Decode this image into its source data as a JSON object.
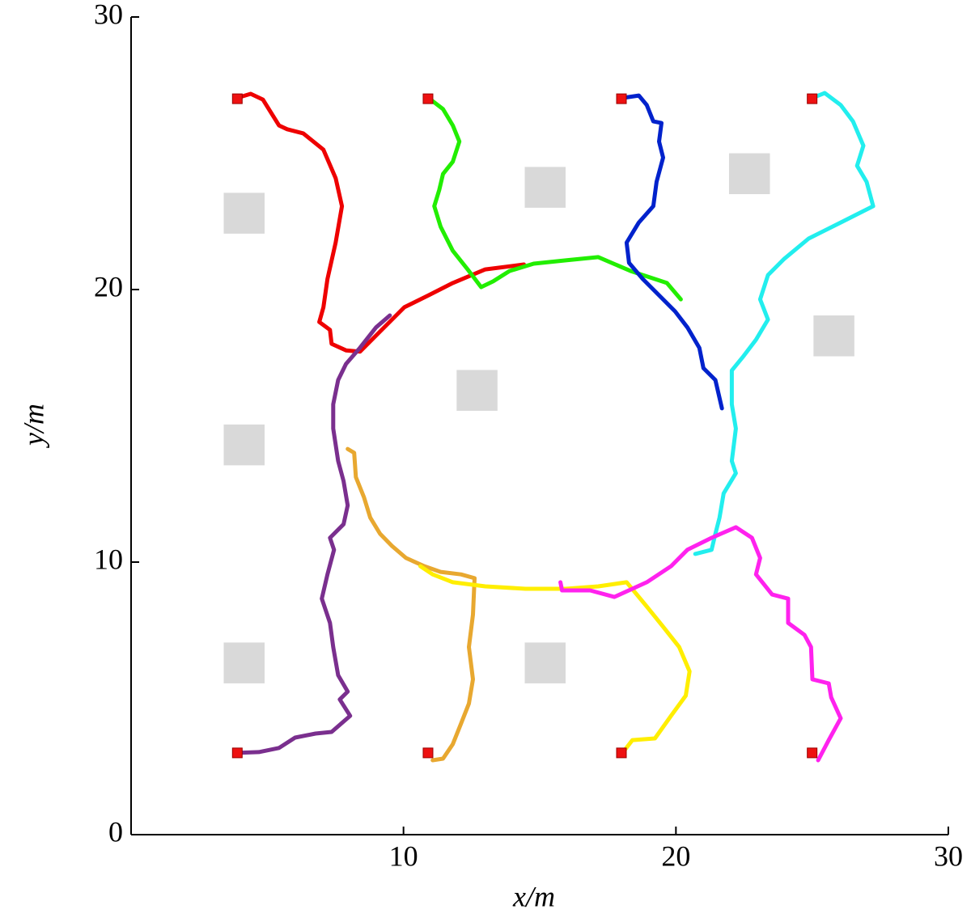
{
  "chart_data": {
    "type": "line",
    "x_label": "x/m",
    "y_label": "y/m",
    "xlim": [
      0,
      30
    ],
    "ylim": [
      0,
      30
    ],
    "xticks": [
      10,
      20,
      30
    ],
    "yticks": [
      0,
      10,
      20,
      30
    ],
    "obstacles": {
      "x": [
        4.15,
        15.2,
        22.7,
        25.8,
        12.7,
        4.15,
        4.15,
        15.2
      ],
      "y": [
        22.8,
        23.75,
        24.25,
        18.3,
        16.3,
        14.3,
        6.3,
        6.3
      ],
      "size": 1.5,
      "color": "#d9d9d9"
    },
    "starts": {
      "x": [
        3.9,
        10.9,
        18.0,
        25.0,
        3.9,
        10.9,
        18.0,
        25.0
      ],
      "y": [
        27.0,
        27.0,
        27.0,
        27.0,
        3.0,
        3.0,
        3.0,
        3.0
      ],
      "color": "#ee1111"
    },
    "series": [
      {
        "color": "#ee0000",
        "x": [
          3.89,
          4.39,
          4.84,
          5.43,
          5.73,
          6.32,
          7.06,
          7.51,
          7.74,
          7.51,
          7.21,
          7.06,
          6.91,
          7.3,
          7.36,
          7.89,
          8.4,
          9.14,
          10.03,
          10.92,
          11.81,
          13.0,
          14.42
        ],
        "values": [
          27.03,
          27.18,
          26.97,
          26.02,
          25.88,
          25.73,
          25.13,
          24.09,
          23.06,
          21.72,
          20.39,
          19.35,
          18.81,
          18.52,
          18.01,
          17.77,
          17.72,
          18.46,
          19.35,
          19.79,
          20.24,
          20.74,
          20.92
        ]
      },
      {
        "color": "#22ee00",
        "x": [
          10.92,
          11.45,
          11.81,
          12.05,
          11.81,
          11.45,
          11.31,
          11.13,
          11.36,
          11.81,
          12.4,
          12.85,
          13.29,
          13.89,
          14.78,
          15.96,
          17.15,
          18.34,
          19.67,
          20.18
        ],
        "values": [
          27.03,
          26.62,
          26.02,
          25.43,
          24.69,
          24.24,
          23.65,
          23.06,
          22.31,
          21.42,
          20.68,
          20.09,
          20.3,
          20.68,
          20.95,
          21.07,
          21.19,
          20.68,
          20.24,
          19.64
        ]
      },
      {
        "color": "#0022cc",
        "x": [
          18.04,
          18.64,
          18.93,
          19.17,
          19.47,
          19.38,
          19.53,
          19.29,
          19.17,
          18.64,
          18.19,
          18.28,
          18.78,
          19.38,
          19.97,
          20.42,
          20.86,
          21.01,
          21.45,
          21.69
        ],
        "values": [
          27.03,
          27.12,
          26.77,
          26.17,
          26.11,
          25.43,
          24.84,
          23.95,
          23.06,
          22.46,
          21.72,
          20.98,
          20.39,
          19.79,
          19.2,
          18.61,
          17.86,
          17.12,
          16.68,
          15.64
        ]
      },
      {
        "color": "#22eeee",
        "x": [
          25.01,
          25.46,
          26.05,
          26.5,
          26.88,
          26.65,
          27.0,
          27.24,
          26.05,
          24.87,
          23.98,
          23.38,
          23.09,
          23.38,
          22.94,
          22.49,
          22.05,
          22.05,
          22.2,
          22.05,
          22.2,
          21.75,
          21.6,
          21.45,
          21.31,
          20.71
        ],
        "values": [
          27.03,
          27.21,
          26.77,
          26.17,
          25.28,
          24.54,
          23.95,
          23.06,
          22.46,
          21.87,
          21.13,
          20.53,
          19.64,
          18.9,
          18.16,
          17.57,
          17.03,
          15.79,
          14.9,
          13.71,
          13.26,
          12.52,
          11.63,
          11.04,
          10.45,
          10.3
        ]
      },
      {
        "color": "#7a2f8e",
        "x": [
          3.89,
          4.69,
          5.43,
          6.02,
          6.77,
          7.36,
          8.04,
          7.66,
          7.95,
          7.6,
          7.42,
          7.3,
          7.0,
          7.21,
          7.45,
          7.3,
          7.8,
          7.95,
          7.8,
          7.6,
          7.42,
          7.42,
          7.6,
          7.89,
          8.4,
          8.99,
          9.5
        ],
        "values": [
          3.0,
          3.03,
          3.18,
          3.56,
          3.71,
          3.77,
          4.36,
          4.96,
          5.25,
          5.85,
          6.88,
          7.77,
          8.66,
          9.55,
          10.45,
          10.89,
          11.39,
          12.08,
          12.97,
          13.71,
          14.9,
          15.79,
          16.68,
          17.27,
          17.86,
          18.61,
          19.05
        ]
      },
      {
        "color": "#e8a830",
        "x": [
          11.07,
          11.45,
          11.81,
          12.11,
          12.4,
          12.55,
          12.4,
          12.55,
          12.61,
          12.11,
          11.36,
          10.77,
          10.09,
          9.58,
          9.14,
          8.78,
          8.55,
          8.25,
          8.19,
          7.95
        ],
        "values": [
          2.73,
          2.79,
          3.32,
          4.07,
          4.81,
          5.7,
          6.88,
          8.07,
          9.41,
          9.55,
          9.64,
          9.85,
          10.15,
          10.59,
          11.04,
          11.63,
          12.37,
          13.12,
          14.01,
          14.15
        ]
      },
      {
        "color": "#ffee00",
        "x": [
          18.04,
          18.4,
          19.23,
          19.82,
          20.36,
          20.5,
          20.12,
          19.53,
          18.93,
          18.19,
          17.15,
          15.96,
          14.48,
          13.0,
          11.81,
          11.07,
          10.62
        ],
        "values": [
          3.0,
          3.47,
          3.53,
          4.36,
          5.1,
          5.99,
          6.88,
          7.63,
          8.37,
          9.26,
          9.11,
          9.02,
          9.02,
          9.11,
          9.26,
          9.55,
          9.85
        ]
      },
      {
        "color": "#ff22ee",
        "x": [
          25.22,
          25.61,
          26.05,
          25.7,
          25.61,
          25.01,
          24.96,
          24.72,
          24.12,
          24.12,
          23.53,
          22.94,
          23.09,
          22.79,
          22.2,
          21.31,
          20.42,
          19.82,
          18.93,
          17.74,
          16.85,
          15.82,
          15.76
        ],
        "values": [
          2.73,
          3.47,
          4.27,
          5.04,
          5.55,
          5.7,
          6.88,
          7.33,
          7.77,
          8.66,
          8.81,
          9.55,
          10.15,
          10.89,
          11.28,
          10.89,
          10.45,
          9.85,
          9.26,
          8.72,
          8.96,
          8.96,
          9.26
        ]
      }
    ]
  }
}
